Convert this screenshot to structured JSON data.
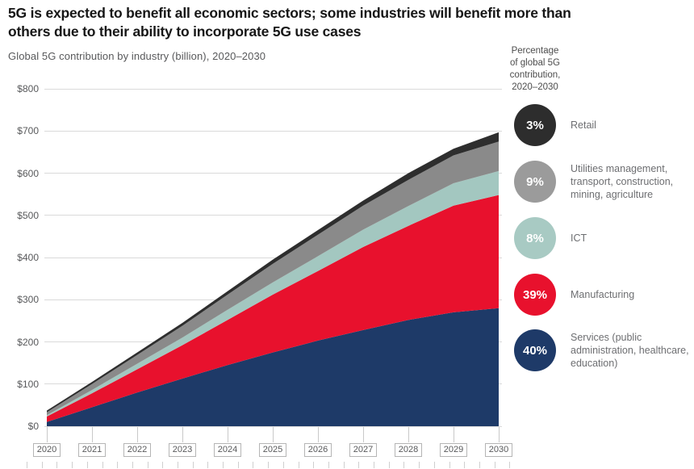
{
  "title": "5G is expected to benefit all economic sectors; some industries will benefit more than\nothers due to their ability to incorporate 5G use cases",
  "subtitle": "Global 5G contribution by industry (billion), 2020–2030",
  "legend": {
    "header": "Percentage\nof global 5G\ncontribution,\n2020–2030",
    "items": [
      {
        "pct": "3%",
        "label": "Retail",
        "color": "#2d2d2d"
      },
      {
        "pct": "9%",
        "label": "Utilities management, transport, construction, mining, agriculture",
        "color": "#9b9b9b"
      },
      {
        "pct": "8%",
        "label": "ICT",
        "color": "#a8cac3"
      },
      {
        "pct": "39%",
        "label": "Manufacturing",
        "color": "#e8112d"
      },
      {
        "pct": "40%",
        "label": "Services (public administration, healthcare, education)",
        "color": "#1e3a68"
      }
    ]
  },
  "colors": {
    "background": "#ffffff",
    "grid": "#dadada",
    "axis_text": "#58595b",
    "title_text": "#161616",
    "legend_text": "#6d6e71"
  },
  "chart_data": {
    "type": "area",
    "stacked": true,
    "title": "Global 5G contribution by industry (billion), 2020–2030",
    "unit": "USD billions",
    "grid": true,
    "legend_position": "right",
    "x_labels": [
      "2020",
      "2021",
      "2022",
      "2023",
      "2024",
      "2025",
      "2026",
      "2027",
      "2028",
      "2029",
      "2030"
    ],
    "ylim": [
      0,
      800
    ],
    "y_tick_step": 100,
    "y_tick_labels": [
      "$0",
      "$100",
      "$200",
      "$300",
      "$400",
      "$500",
      "$600",
      "$700",
      "$800"
    ],
    "series": [
      {
        "name": "Services (public administration, healthcare, education)",
        "share": "40%",
        "color": "#1e3a68",
        "values": [
          10,
          45,
          80,
          113,
          145,
          175,
          203,
          228,
          252,
          270,
          280
        ]
      },
      {
        "name": "Manufacturing",
        "share": "39%",
        "color": "#e8112d",
        "values": [
          13,
          33,
          55,
          79,
          107,
          137,
          165,
          197,
          223,
          253,
          268
        ]
      },
      {
        "name": "ICT",
        "share": "8%",
        "color": "#a3c7c0",
        "values": [
          3,
          8,
          13,
          18,
          24,
          29,
          35,
          41,
          47,
          53,
          57
        ]
      },
      {
        "name": "Utilities management, transport, construction, mining, agriculture",
        "share": "9%",
        "color": "#8a8a8a",
        "values": [
          7,
          14,
          21,
          28,
          36,
          44,
          51,
          57,
          62,
          66,
          70
        ]
      },
      {
        "name": "Retail",
        "share": "3%",
        "color": "#2e2e2e",
        "values": [
          4,
          5,
          6,
          7,
          8,
          10,
          11,
          12,
          16,
          16,
          22
        ]
      }
    ]
  }
}
